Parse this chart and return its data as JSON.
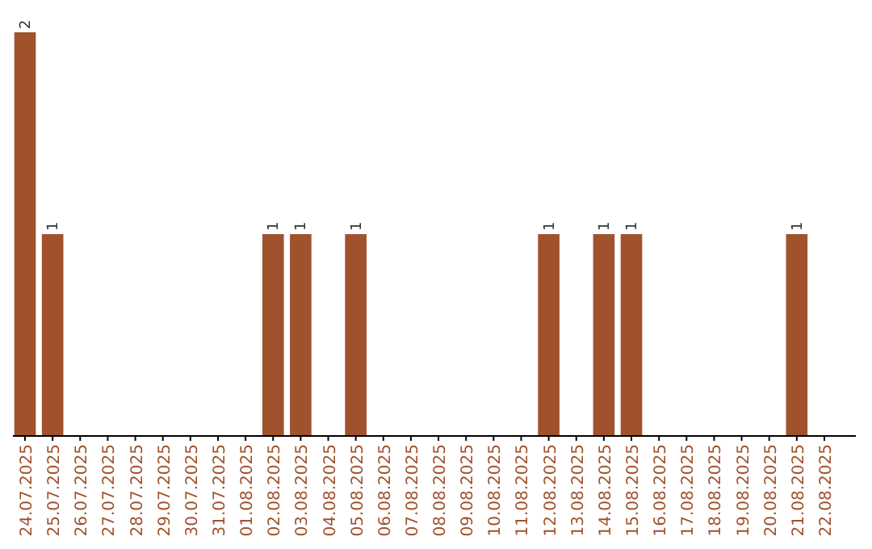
{
  "chart_data": {
    "type": "bar",
    "categories": [
      "24.07.2025",
      "25.07.2025",
      "26.07.2025",
      "27.07.2025",
      "28.07.2025",
      "29.07.2025",
      "30.07.2025",
      "31.07.2025",
      "01.08.2025",
      "02.08.2025",
      "03.08.2025",
      "04.08.2025",
      "05.08.2025",
      "06.08.2025",
      "07.08.2025",
      "08.08.2025",
      "09.08.2025",
      "10.08.2025",
      "11.08.2025",
      "12.08.2025",
      "13.08.2025",
      "14.08.2025",
      "15.08.2025",
      "16.08.2025",
      "17.08.2025",
      "18.08.2025",
      "19.08.2025",
      "20.08.2025",
      "21.08.2025",
      "22.08.2025"
    ],
    "values": [
      2,
      1,
      0,
      0,
      0,
      0,
      0,
      0,
      0,
      1,
      1,
      0,
      1,
      0,
      0,
      0,
      0,
      0,
      0,
      1,
      0,
      1,
      1,
      0,
      0,
      0,
      0,
      0,
      1,
      0
    ],
    "value_labels": [
      "2",
      "1",
      null,
      null,
      null,
      null,
      null,
      null,
      null,
      "1",
      "1",
      null,
      "1",
      null,
      null,
      null,
      null,
      null,
      null,
      "1",
      null,
      "1",
      "1",
      null,
      null,
      null,
      null,
      null,
      "1",
      null
    ],
    "color": "#a0522d"
  }
}
